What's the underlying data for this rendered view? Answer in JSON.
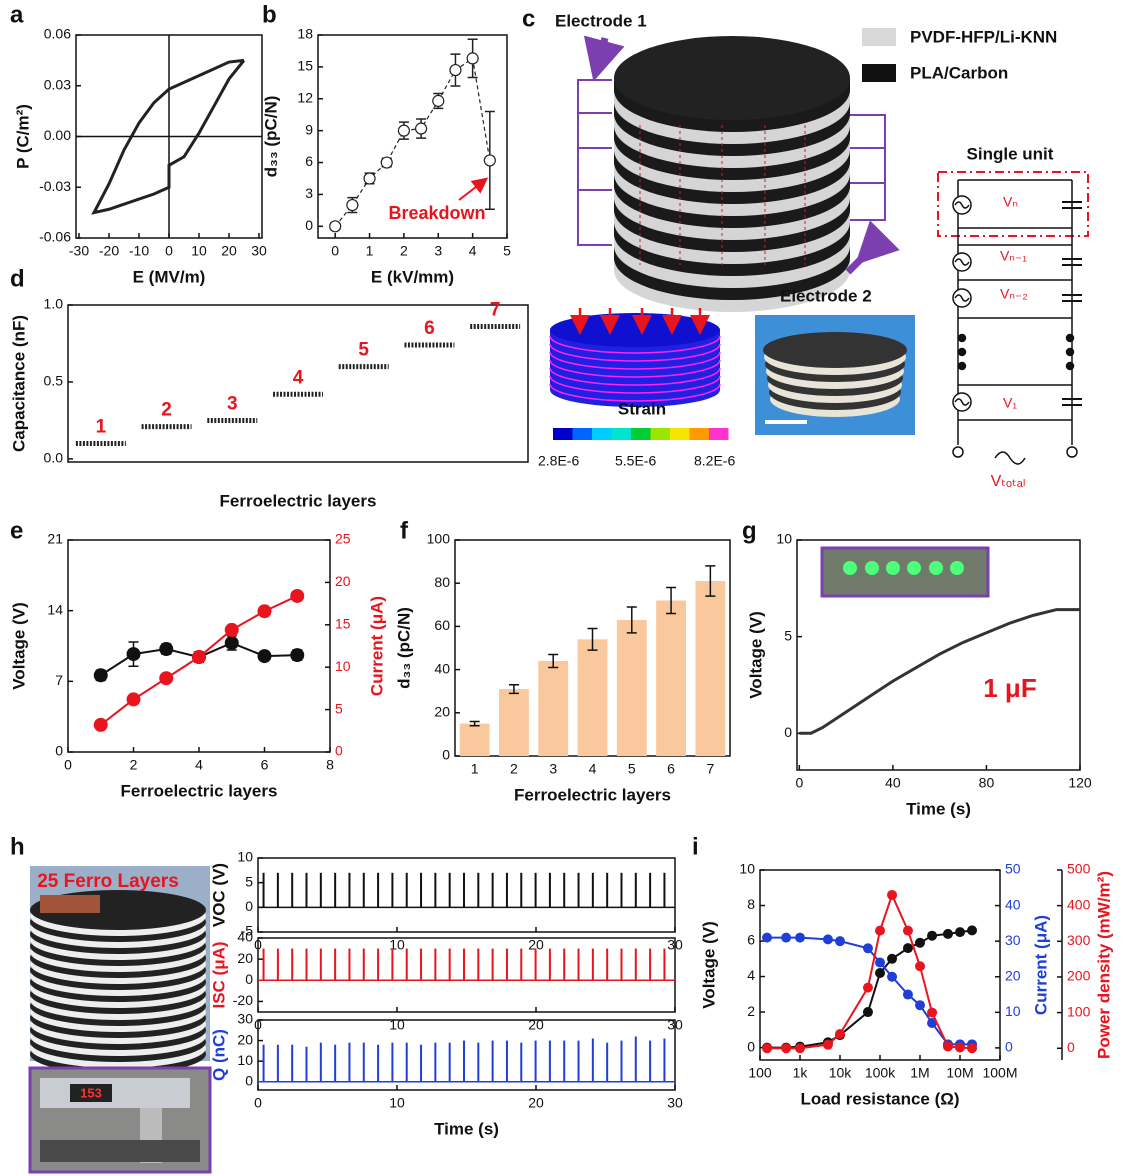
{
  "chart_data": [
    {
      "type": "line",
      "panel": "a",
      "x_label": "E (MV/m)",
      "y_label": "P (C/m²)",
      "color": "#222",
      "zero_lines": true,
      "x": [
        25,
        20,
        15,
        10,
        5,
        0,
        -5,
        -10,
        -15,
        -20,
        -25,
        -20,
        -15,
        -10,
        -5,
        0,
        0,
        5,
        10,
        15,
        20,
        25
      ],
      "values": [
        0.045,
        0.044,
        0.04,
        0.036,
        0.032,
        0.028,
        0.02,
        0.008,
        -0.008,
        -0.028,
        -0.045,
        -0.043,
        -0.04,
        -0.037,
        -0.034,
        -0.03,
        -0.017,
        -0.012,
        0.002,
        0.018,
        0.034,
        0.045
      ],
      "xlim": [
        -31,
        31
      ],
      "xticks": [
        -30,
        -20,
        -10,
        0,
        10,
        20,
        30
      ],
      "ylim": [
        -0.06,
        0.06
      ],
      "yticks": [
        -0.06,
        -0.03,
        {
          "value": 0,
          "label": "0.00"
        },
        0.03,
        0.06
      ]
    },
    {
      "type": "scatter",
      "panel": "b",
      "x_label": "E (kV/mm)",
      "y_label": "d₃₃ (pC/N)",
      "color": "#222",
      "annotation": "Breakdown",
      "x": [
        0,
        0.5,
        1,
        1.5,
        2,
        2.5,
        3,
        3.5,
        4,
        4.5
      ],
      "values": [
        0,
        2,
        4.5,
        6,
        9,
        9.2,
        11.8,
        14.7,
        15.8,
        6.2
      ],
      "errors": [
        0.3,
        0.7,
        0.5,
        0.4,
        0.8,
        0.9,
        0.7,
        1.5,
        1.8,
        4.6
      ],
      "xlim": [
        -0.5,
        5
      ],
      "xticks": [
        0,
        1,
        2,
        3,
        4,
        5
      ],
      "ylim": [
        -1.1,
        18
      ],
      "yticks": [
        0,
        3,
        6,
        9,
        12,
        15,
        18
      ]
    },
    {
      "type": "plateau",
      "panel": "d",
      "x_label": "Ferroelectric layers",
      "y_label": "Capacitance (nF)",
      "color": "#222",
      "label_color": "#e8141e",
      "categories": [
        "1",
        "2",
        "3",
        "4",
        "5",
        "6",
        "7"
      ],
      "values": [
        0.1,
        0.21,
        0.25,
        0.42,
        0.6,
        0.74,
        0.86
      ],
      "ylim": [
        -0.02,
        1.0
      ],
      "yticks": [
        {
          "value": 0,
          "label": "0.0"
        },
        0.5,
        {
          "value": 1,
          "label": "1.0"
        }
      ]
    },
    {
      "type": "dual",
      "panel": "e",
      "x_label": "Ferroelectric layers",
      "y_label": "Voltage (V)",
      "y2_label": "Current (μA)",
      "x": [
        1,
        2,
        3,
        4,
        5,
        6,
        7
      ],
      "series": [
        {
          "color": "#111",
          "values": [
            7.6,
            9.7,
            10.2,
            9.4,
            10.8,
            9.5,
            9.6
          ],
          "errors": [
            0.5,
            1.2,
            0.5,
            0.5,
            0.7,
            0.4,
            0.5
          ]
        },
        {
          "color": "#e8141e",
          "axis": "y2",
          "values": [
            3.2,
            6.2,
            8.7,
            11.2,
            14.4,
            16.6,
            18.4
          ]
        }
      ],
      "xlim": [
        0,
        8
      ],
      "xticks": [
        0,
        2,
        4,
        6,
        8
      ],
      "ylim": [
        0,
        21
      ],
      "yticks": [
        0,
        7,
        14,
        21
      ],
      "y2lim": [
        0,
        25
      ],
      "y2ticks": [
        0,
        5,
        10,
        15,
        20,
        25
      ]
    },
    {
      "type": "bar",
      "panel": "f",
      "x_label": "Ferroelectric layers",
      "y_label": "d₃₃ (pC/N)",
      "color": "#f9c99d",
      "categories": [
        "1",
        "2",
        "3",
        "4",
        "5",
        "6",
        "7"
      ],
      "values": [
        15,
        31,
        44,
        54,
        63,
        72,
        81
      ],
      "errors": [
        1,
        2,
        3,
        5,
        6,
        6,
        7
      ],
      "ylim": [
        0,
        100
      ],
      "yticks": [
        0,
        20,
        40,
        60,
        80,
        100
      ]
    },
    {
      "type": "line",
      "panel": "g",
      "x_label": "Time (s)",
      "y_label": "Voltage (V)",
      "color": "#333",
      "annotation": "1 μF",
      "x": [
        0,
        5,
        10,
        20,
        30,
        40,
        50,
        60,
        70,
        80,
        90,
        100,
        110,
        120
      ],
      "values": [
        0,
        0,
        0.3,
        1.1,
        1.9,
        2.7,
        3.4,
        4.1,
        4.7,
        5.2,
        5.7,
        6.1,
        6.4,
        6.4
      ],
      "xlim": [
        -1,
        120
      ],
      "xticks": [
        0,
        40,
        80,
        120
      ],
      "ylim": [
        -1.9,
        10
      ],
      "yticks": [
        0,
        5,
        10
      ]
    },
    {
      "type": "pulse",
      "panel": "h",
      "y_label": "VOC (V)",
      "color": "#111",
      "x": [
        0.4,
        1.43,
        2.46,
        3.49,
        4.52,
        5.55,
        6.58,
        7.61,
        8.64,
        9.67,
        10.7,
        11.73,
        12.76,
        13.79,
        14.82,
        15.85,
        16.88,
        17.91,
        18.94,
        19.97,
        21,
        22.03,
        23.06,
        24.09,
        25.12,
        26.15,
        27.18,
        28.21,
        29.24
      ],
      "values": [
        7,
        7,
        7,
        7,
        7,
        7,
        7,
        7,
        7,
        7,
        7,
        7,
        7,
        7,
        7,
        7,
        7,
        7,
        7,
        7,
        7,
        7,
        7,
        7,
        7,
        7,
        7,
        7,
        7
      ],
      "xlim": [
        0,
        30
      ],
      "xticks": [
        0,
        10,
        20,
        30
      ],
      "ylim": [
        -5,
        10
      ],
      "yticks": [
        -5,
        0,
        5,
        10
      ]
    },
    {
      "type": "pulse",
      "y_label": "ISC (μA)",
      "color": "#e8141e",
      "x": [
        0.4,
        1.43,
        2.46,
        3.49,
        4.52,
        5.55,
        6.58,
        7.61,
        8.64,
        9.67,
        10.7,
        11.73,
        12.76,
        13.79,
        14.82,
        15.85,
        16.88,
        17.91,
        18.94,
        19.97,
        21,
        22.03,
        23.06,
        24.09,
        25.12,
        26.15,
        27.18,
        28.21,
        29.24
      ],
      "values": [
        30,
        30,
        30,
        30,
        30,
        30,
        30,
        30,
        30,
        30,
        30,
        30,
        30,
        30,
        30,
        30,
        30,
        30,
        30,
        30,
        30,
        30,
        30,
        30,
        30,
        30,
        30,
        30,
        30
      ],
      "xlim": [
        0,
        30
      ],
      "xticks": [
        0,
        10,
        20,
        30
      ],
      "ylim": [
        -30,
        40
      ],
      "yticks": [
        -20,
        0,
        20,
        40
      ]
    },
    {
      "type": "pulse",
      "x_label": "Time (s)",
      "y_label": "Q (nC)",
      "color": "#1f3fd8",
      "x": [
        0.4,
        1.43,
        2.46,
        3.49,
        4.52,
        5.55,
        6.58,
        7.61,
        8.64,
        9.67,
        10.7,
        11.73,
        12.76,
        13.79,
        14.82,
        15.85,
        16.88,
        17.91,
        18.94,
        19.97,
        21,
        22.03,
        23.06,
        24.09,
        25.12,
        26.15,
        27.18,
        28.21,
        29.24
      ],
      "values": [
        18,
        18,
        18,
        17,
        19,
        18,
        19,
        19,
        18,
        19,
        19,
        18,
        19,
        19,
        20,
        19,
        20,
        20,
        19,
        20,
        20,
        20,
        20,
        21,
        19,
        20,
        22,
        20,
        21
      ],
      "xlim": [
        0,
        30
      ],
      "xticks": [
        0,
        10,
        20,
        30
      ],
      "ylim": [
        -4,
        30
      ],
      "yticks": [
        0,
        10,
        20,
        30
      ]
    },
    {
      "type": "dual",
      "panel": "i",
      "x_label": "Load resistance (Ω)",
      "y_label": "Voltage (V)",
      "y2_label": "Current (μA)",
      "y3_label": "Power density (mW/m²)",
      "xlog": true,
      "x": [
        150,
        450,
        1000,
        5000,
        10000,
        50000,
        100000,
        200000,
        500000,
        1000000,
        2000000,
        5000000,
        10000000,
        20000000
      ],
      "series": [
        {
          "color": "#111",
          "values": [
            0,
            0,
            0.05,
            0.3,
            0.7,
            2,
            4.2,
            5,
            5.6,
            5.9,
            6.3,
            6.4,
            6.5,
            6.6
          ]
        },
        {
          "color": "#1f3fd8",
          "axis": "y2",
          "values": [
            31,
            31,
            31,
            30.5,
            30,
            28,
            24,
            20,
            15,
            12,
            7,
            1,
            1,
            1
          ]
        },
        {
          "color": "#e8141e",
          "axis": "y3",
          "values": [
            0,
            0,
            0,
            10,
            40,
            170,
            330,
            430,
            330,
            230,
            100,
            5,
            2,
            0
          ]
        }
      ],
      "xlim": [
        100,
        100000000
      ],
      "xticks": [
        {
          "value": 100,
          "label": "100"
        },
        {
          "value": 1000,
          "label": "1k"
        },
        {
          "value": 10000,
          "label": "10k"
        },
        {
          "value": 100000,
          "label": "100k"
        },
        {
          "value": 1000000,
          "label": "1M"
        },
        {
          "value": 10000000,
          "label": "10M"
        },
        {
          "value": 100000000,
          "label": "100M"
        }
      ],
      "ylim": [
        -0.7,
        10
      ],
      "yticks": [
        0,
        2,
        4,
        6,
        8,
        10
      ],
      "y2lim": [
        -3.4,
        50
      ],
      "y2ticks": [
        0,
        10,
        20,
        30,
        40,
        50
      ],
      "y3lim": [
        -33,
        500
      ],
      "y3ticks": [
        0,
        100,
        200,
        300,
        400,
        500
      ]
    }
  ],
  "panel_c": {
    "panel": "c",
    "electrode_1": "Electrode 1",
    "electrode_2": "Electrode 2",
    "legend_1": "PVDF-HFP/Li-KNN",
    "legend_2": "PLA/Carbon",
    "strain_title": "Strain",
    "strain_min": "2.8E-6",
    "strain_mid": "5.5E-6",
    "strain_max": "8.2E-6",
    "circuit_title": "Single unit",
    "v_n": "Vₙ",
    "v_n1": "Vₙ₋₁",
    "v_n2": "Vₙ₋₂",
    "v_1": "V₁",
    "v_total": "Vₜₒₜₐₗ"
  },
  "panel_h": {
    "photo_label": "25 Ferro Layers",
    "display": "153"
  }
}
